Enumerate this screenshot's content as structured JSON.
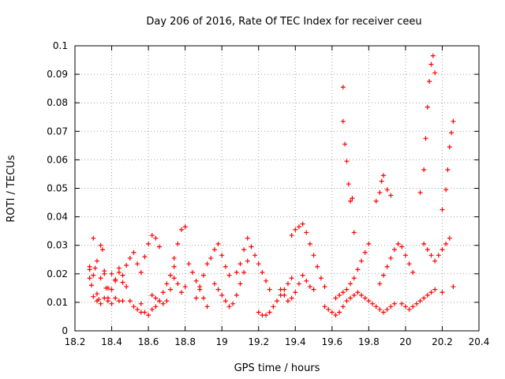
{
  "chart_data": {
    "type": "scatter",
    "title": "Day 206 of 2016, Rate Of TEC Index for receiver ceeu",
    "xlabel": "GPS time / hours",
    "ylabel": "ROTI / TECUs",
    "xlim": [
      18.2,
      20.4
    ],
    "ylim": [
      0,
      0.1
    ],
    "grid": true,
    "marker": "+",
    "color": "#ff0000",
    "x_ticks": [
      {
        "value": 18.2,
        "label": "18.2"
      },
      {
        "value": 18.4,
        "label": "18.4"
      },
      {
        "value": 18.6,
        "label": "18.6"
      },
      {
        "value": 18.8,
        "label": "18.8"
      },
      {
        "value": 19.0,
        "label": "19"
      },
      {
        "value": 19.2,
        "label": "19.2"
      },
      {
        "value": 19.4,
        "label": "19.4"
      },
      {
        "value": 19.6,
        "label": "19.6"
      },
      {
        "value": 19.8,
        "label": "19.8"
      },
      {
        "value": 20.0,
        "label": "20"
      },
      {
        "value": 20.2,
        "label": "20.2"
      },
      {
        "value": 20.4,
        "label": "20.4"
      }
    ],
    "y_ticks": [
      {
        "value": 0,
        "label": "0"
      },
      {
        "value": 0.01,
        "label": "0.01"
      },
      {
        "value": 0.02,
        "label": "0.02"
      },
      {
        "value": 0.03,
        "label": "0.03"
      },
      {
        "value": 0.04,
        "label": "0.04"
      },
      {
        "value": 0.05,
        "label": "0.05"
      },
      {
        "value": 0.06,
        "label": "0.06"
      },
      {
        "value": 0.07,
        "label": "0.07"
      },
      {
        "value": 0.08,
        "label": "0.08"
      },
      {
        "value": 0.09,
        "label": "0.09"
      },
      {
        "value": 0.1,
        "label": "0.1"
      }
    ],
    "series": [
      {
        "name": "ROTI",
        "x": [
          18.28,
          18.29,
          18.3,
          18.31,
          18.32,
          18.33,
          18.34,
          18.35,
          18.36,
          18.37,
          18.28,
          18.3,
          18.32,
          18.34,
          18.36,
          18.38,
          18.4,
          18.42,
          18.44,
          18.46,
          18.28,
          18.3,
          18.32,
          18.34,
          18.36,
          18.38,
          18.4,
          18.42,
          18.44,
          18.46,
          18.38,
          18.4,
          18.42,
          18.44,
          18.46,
          18.48,
          18.5,
          18.52,
          18.54,
          18.56,
          18.48,
          18.5,
          18.52,
          18.54,
          18.56,
          18.58,
          18.6,
          18.62,
          18.64,
          18.66,
          18.56,
          18.58,
          18.6,
          18.62,
          18.64,
          18.66,
          18.68,
          18.7,
          18.72,
          18.74,
          18.62,
          18.64,
          18.66,
          18.68,
          18.7,
          18.72,
          18.74,
          18.76,
          18.78,
          18.8,
          18.74,
          18.76,
          18.78,
          18.8,
          18.82,
          18.84,
          18.86,
          18.88,
          18.9,
          18.92,
          18.86,
          18.88,
          18.9,
          18.92,
          18.94,
          18.96,
          18.98,
          19.0,
          19.02,
          19.04,
          18.96,
          18.98,
          19.0,
          19.02,
          19.04,
          19.06,
          19.08,
          19.1,
          19.12,
          19.14,
          19.08,
          19.1,
          19.12,
          19.14,
          19.16,
          19.18,
          19.2,
          19.22,
          19.24,
          19.26,
          19.2,
          19.22,
          19.24,
          19.26,
          19.28,
          19.3,
          19.32,
          19.34,
          19.36,
          19.38,
          19.32,
          19.34,
          19.36,
          19.38,
          19.4,
          19.42,
          19.44,
          19.46,
          19.48,
          19.5,
          19.38,
          19.4,
          19.42,
          19.44,
          19.46,
          19.48,
          19.5,
          19.52,
          19.54,
          19.56,
          19.56,
          19.58,
          19.6,
          19.62,
          19.64,
          19.66,
          19.68,
          19.7,
          19.72,
          19.74,
          19.62,
          19.64,
          19.66,
          19.68,
          19.7,
          19.72,
          19.74,
          19.76,
          19.78,
          19.8,
          19.76,
          19.78,
          19.8,
          19.82,
          19.84,
          19.86,
          19.88,
          19.9,
          19.92,
          19.94,
          19.86,
          19.88,
          19.9,
          19.92,
          19.94,
          19.96,
          19.98,
          20.0,
          20.02,
          20.04,
          19.98,
          20.0,
          20.02,
          20.04,
          20.06,
          20.08,
          20.1,
          20.12,
          20.14,
          20.16,
          20.1,
          20.12,
          20.14,
          20.16,
          20.18,
          20.2,
          20.22,
          20.24,
          20.26,
          20.2,
          19.66,
          19.66,
          19.67,
          19.68,
          19.69,
          19.7,
          19.71,
          19.72,
          19.84,
          19.86,
          19.87,
          19.88,
          19.9,
          19.92,
          20.08,
          20.1,
          20.11,
          20.12,
          20.13,
          20.14,
          20.15,
          20.16,
          20.2,
          20.22,
          20.23,
          20.24,
          20.25,
          20.26
        ],
        "y": [
          0.0215,
          0.016,
          0.0325,
          0.022,
          0.013,
          0.011,
          0.03,
          0.0285,
          0.02,
          0.015,
          0.0185,
          0.012,
          0.0105,
          0.0095,
          0.0115,
          0.0105,
          0.0095,
          0.018,
          0.0205,
          0.017,
          0.0225,
          0.0195,
          0.0245,
          0.0185,
          0.021,
          0.015,
          0.02,
          0.0115,
          0.0105,
          0.0105,
          0.0115,
          0.0145,
          0.0175,
          0.022,
          0.0195,
          0.0155,
          0.0105,
          0.0085,
          0.0075,
          0.0065,
          0.023,
          0.0255,
          0.0275,
          0.0235,
          0.0205,
          0.026,
          0.0305,
          0.0335,
          0.0325,
          0.0295,
          0.0095,
          0.0065,
          0.0055,
          0.0075,
          0.0085,
          0.0105,
          0.0135,
          0.0165,
          0.0195,
          0.0225,
          0.0125,
          0.0115,
          0.0105,
          0.0095,
          0.0105,
          0.0145,
          0.0185,
          0.0165,
          0.0135,
          0.0155,
          0.0255,
          0.0305,
          0.0355,
          0.0365,
          0.0235,
          0.0205,
          0.0175,
          0.0145,
          0.0115,
          0.0085,
          0.0115,
          0.0155,
          0.0195,
          0.0235,
          0.0255,
          0.0285,
          0.0305,
          0.0265,
          0.0225,
          0.0195,
          0.0165,
          0.0145,
          0.0125,
          0.0105,
          0.0085,
          0.0095,
          0.0125,
          0.0165,
          0.0205,
          0.0245,
          0.0205,
          0.0235,
          0.0285,
          0.0325,
          0.0295,
          0.0265,
          0.0235,
          0.0205,
          0.0175,
          0.0145,
          0.0065,
          0.0055,
          0.0055,
          0.0065,
          0.0085,
          0.0105,
          0.0125,
          0.0145,
          0.0165,
          0.0185,
          0.0145,
          0.0125,
          0.0105,
          0.0115,
          0.0135,
          0.0165,
          0.0195,
          0.0175,
          0.0155,
          0.0145,
          0.0335,
          0.0355,
          0.0365,
          0.0375,
          0.0345,
          0.0305,
          0.0265,
          0.0225,
          0.0185,
          0.0155,
          0.0085,
          0.0075,
          0.0065,
          0.0055,
          0.0065,
          0.0085,
          0.0105,
          0.0115,
          0.0125,
          0.0135,
          0.0115,
          0.0125,
          0.0135,
          0.0145,
          0.0165,
          0.0185,
          0.0215,
          0.0245,
          0.0275,
          0.0305,
          0.0125,
          0.0115,
          0.0105,
          0.0095,
          0.0085,
          0.0075,
          0.0065,
          0.0075,
          0.0085,
          0.0095,
          0.0165,
          0.0195,
          0.0225,
          0.0255,
          0.0285,
          0.0305,
          0.0295,
          0.0265,
          0.0235,
          0.0205,
          0.0095,
          0.0085,
          0.0075,
          0.0085,
          0.0095,
          0.0105,
          0.0115,
          0.0125,
          0.0135,
          0.0145,
          0.0305,
          0.0285,
          0.0265,
          0.0245,
          0.0265,
          0.0285,
          0.0305,
          0.0325,
          0.0155,
          0.0135,
          0.0855,
          0.0735,
          0.0655,
          0.0595,
          0.0515,
          0.0455,
          0.0465,
          0.0345,
          0.0455,
          0.0485,
          0.0525,
          0.0545,
          0.0495,
          0.0475,
          0.0485,
          0.0565,
          0.0675,
          0.0785,
          0.0875,
          0.0935,
          0.0965,
          0.0905,
          0.0425,
          0.0495,
          0.0565,
          0.0645,
          0.0695,
          0.0735
        ]
      }
    ]
  }
}
